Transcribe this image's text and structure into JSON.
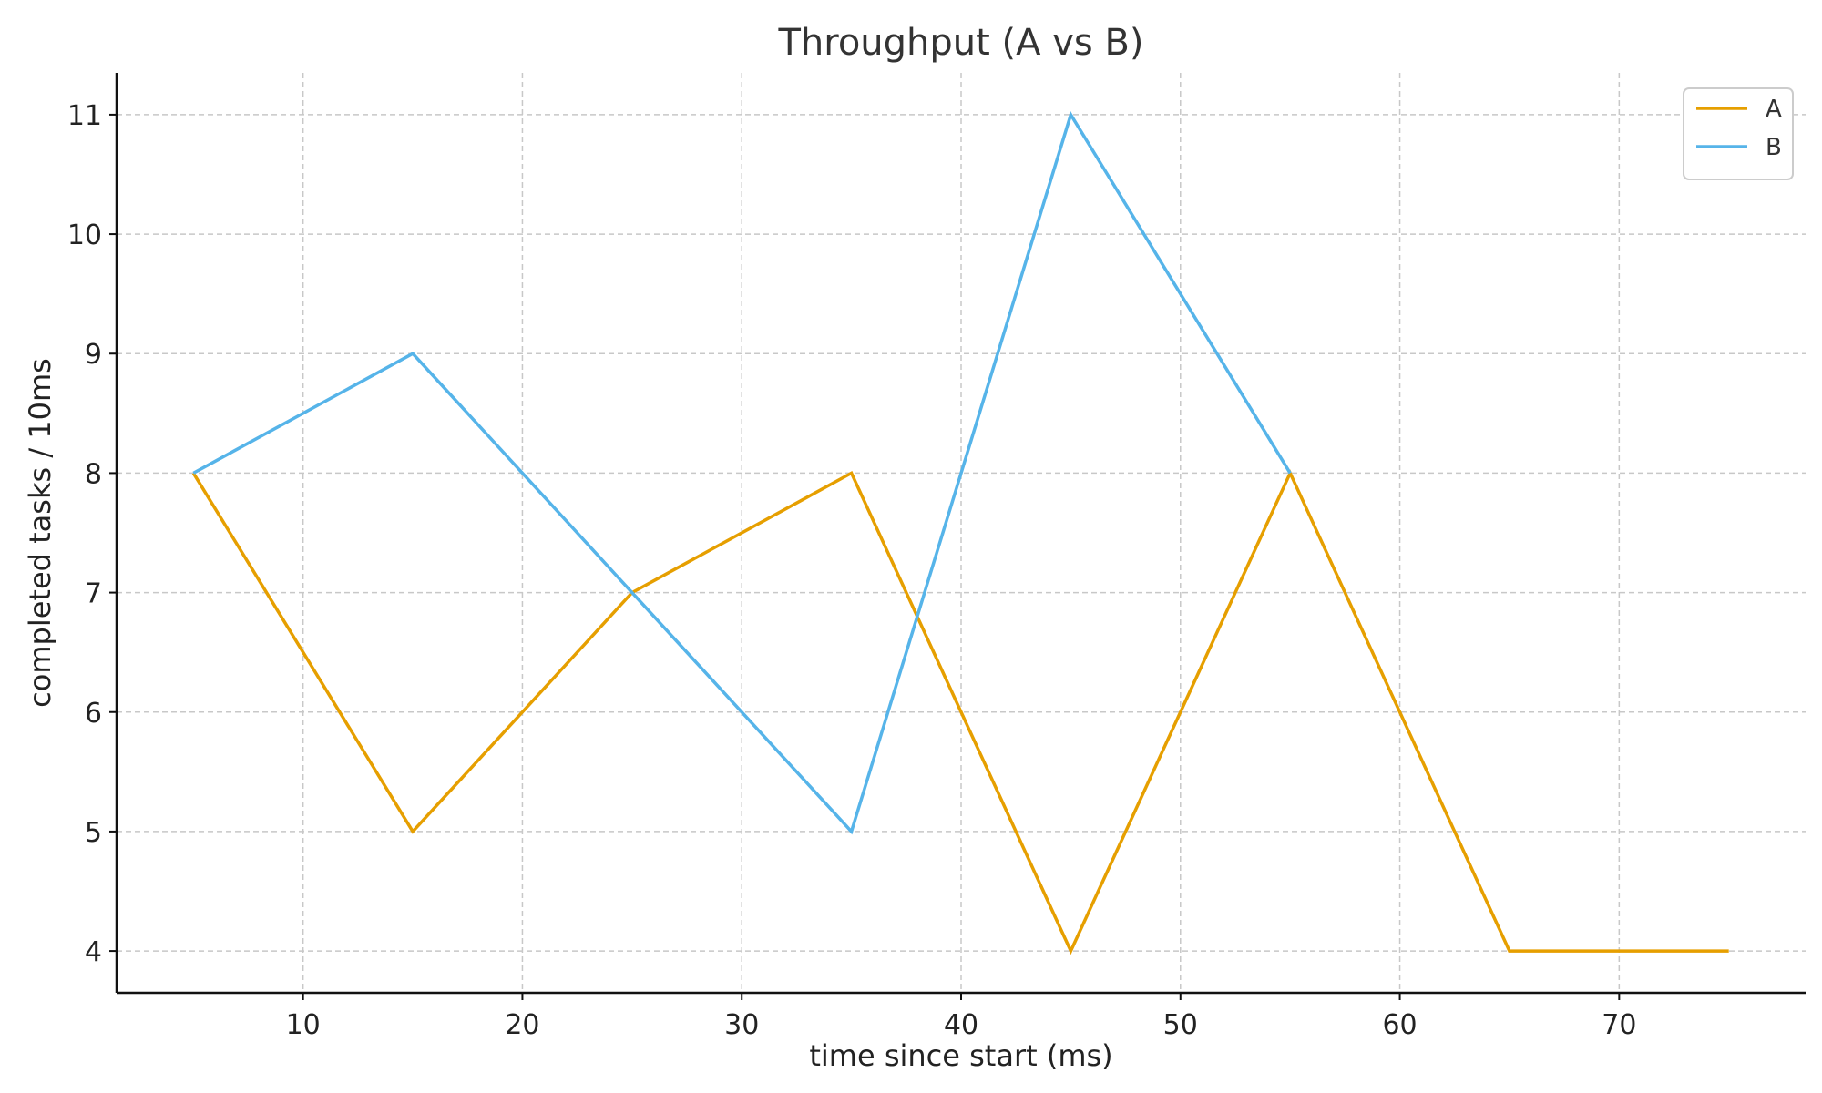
{
  "chart_data": {
    "type": "line",
    "title": "Throughput (A vs B)",
    "xlabel": "time since start (ms)",
    "ylabel": "completed tasks / 10ms",
    "xlim": [
      1.5,
      78.5
    ],
    "ylim": [
      3.65,
      11.35
    ],
    "xticks": [
      10,
      20,
      30,
      40,
      50,
      60,
      70
    ],
    "yticks": [
      4,
      5,
      6,
      7,
      8,
      9,
      10,
      11
    ],
    "grid": true,
    "legend_position": "top-right",
    "series": [
      {
        "name": "A",
        "color": "#E69F00",
        "points": [
          [
            5,
            8
          ],
          [
            15,
            5
          ],
          [
            25,
            7
          ],
          [
            35,
            8
          ],
          [
            45,
            4
          ],
          [
            55,
            8
          ],
          [
            65,
            4
          ],
          [
            75,
            4
          ]
        ]
      },
      {
        "name": "B",
        "color": "#56B4E9",
        "points": [
          [
            5,
            8
          ],
          [
            15,
            9
          ],
          [
            25,
            7
          ],
          [
            35,
            5
          ],
          [
            45,
            11
          ],
          [
            55,
            8
          ]
        ]
      }
    ]
  }
}
